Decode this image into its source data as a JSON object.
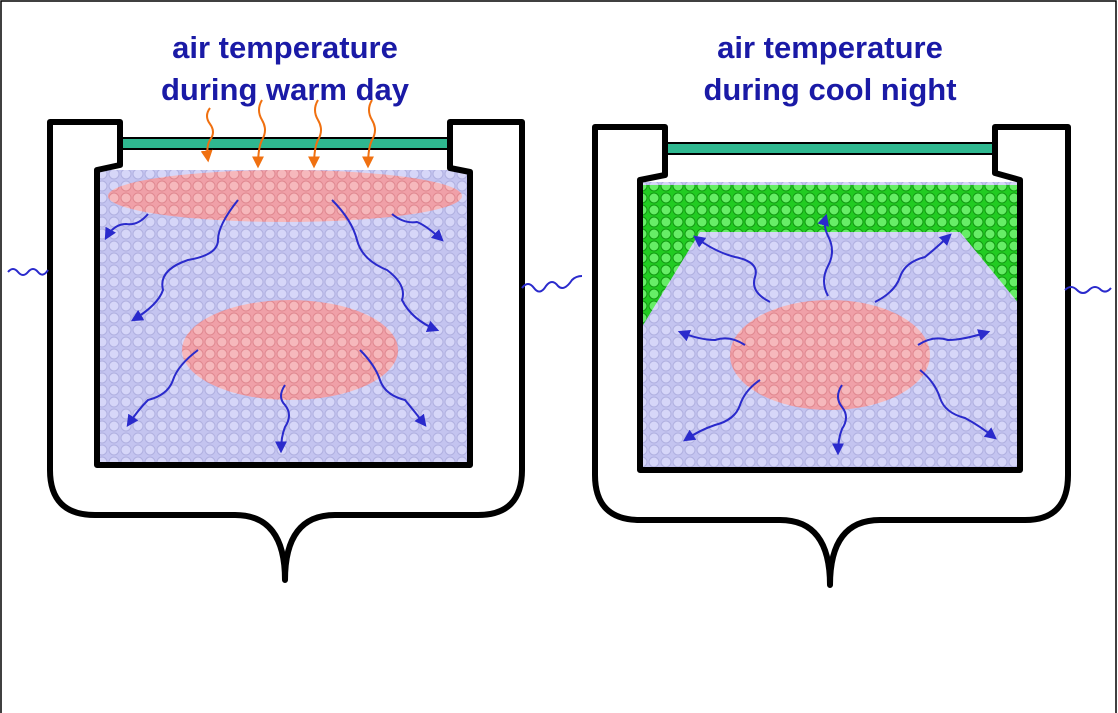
{
  "panels": [
    {
      "title": [
        "air temperature",
        "during warm day"
      ]
    },
    {
      "title": [
        "air temperature",
        "during cool night"
      ]
    }
  ]
}
